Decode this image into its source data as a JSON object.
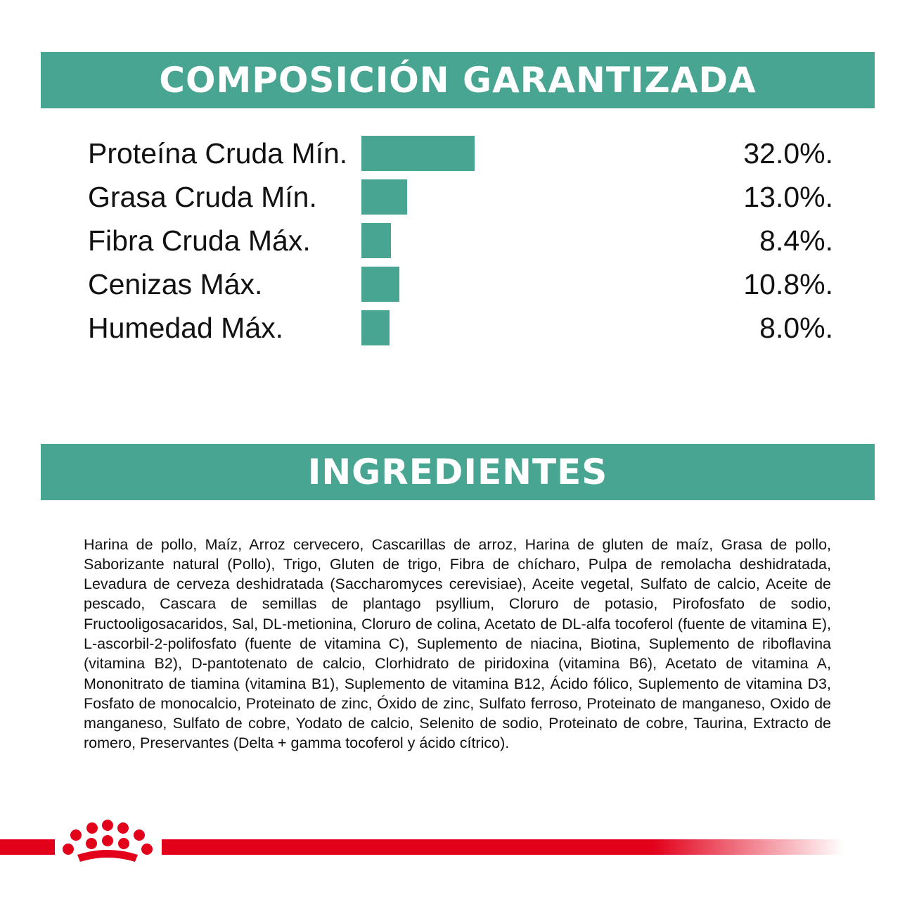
{
  "colors": {
    "accent": "#48a591",
    "brand_red": "#e2001a",
    "text": "#111111"
  },
  "composition": {
    "title": "COMPOSICIÓN GARANTIZADA"
  },
  "chart_data": {
    "type": "bar",
    "orientation": "horizontal",
    "categories": [
      "Proteína Cruda Mín.",
      "Grasa Cruda Mín.",
      "Fibra Cruda Máx.",
      "Cenizas Máx.",
      "Humedad Máx."
    ],
    "values": [
      32.0,
      13.0,
      8.4,
      10.8,
      8.0
    ],
    "value_labels": [
      "32.0%.",
      "13.0%.",
      "8.4%.",
      "10.8%.",
      "8.0%."
    ],
    "xlim": [
      0,
      32.0
    ],
    "grid": false,
    "legend": "none"
  },
  "ingredients": {
    "title": "INGREDIENTES",
    "text": "Harina de pollo, Maíz, Arroz cervecero, Cascarillas de arroz, Harina de gluten de maíz, Grasa de pollo, Saborizante natural (Pollo), Trigo, Gluten de trigo, Fibra de chícharo, Pulpa de remolacha deshidratada, Levadura de cerveza deshidratada (Saccharomyces cerevisiae), Aceite vegetal, Sulfato de calcio, Aceite de pescado, Cascara de semillas de plantago psyllium, Cloruro de potasio, Pirofosfato de sodio, Fructooligosacaridos, Sal, DL-metionina, Cloruro de colina, Acetato de DL-alfa tocoferol (fuente de vitamina E), L-ascorbil-2-polifosfato (fuente de vitamina C), Suplemento de niacina, Biotina, Suplemento de riboflavina (vitamina B2), D-pantotenato de calcio, Clorhidrato de piridoxina (vitamina B6), Acetato de vitamina A, Mononitrato de tiamina (vitamina B1), Suplemento de vitamina B12, Ácido fólico, Suplemento de vitamina D3, Fosfato de monocalcio, Proteinato de zinc, Óxido de zinc, Sulfato ferroso, Proteinato de manganeso, Oxido de manganeso, Sulfato de cobre, Yodato de calcio, Selenito de sodio, Proteinato de cobre, Taurina, Extracto de romero, Preservantes (Delta + gamma tocoferol y ácido cítrico)."
  },
  "footer": {
    "logo_icon": "crown-icon"
  }
}
